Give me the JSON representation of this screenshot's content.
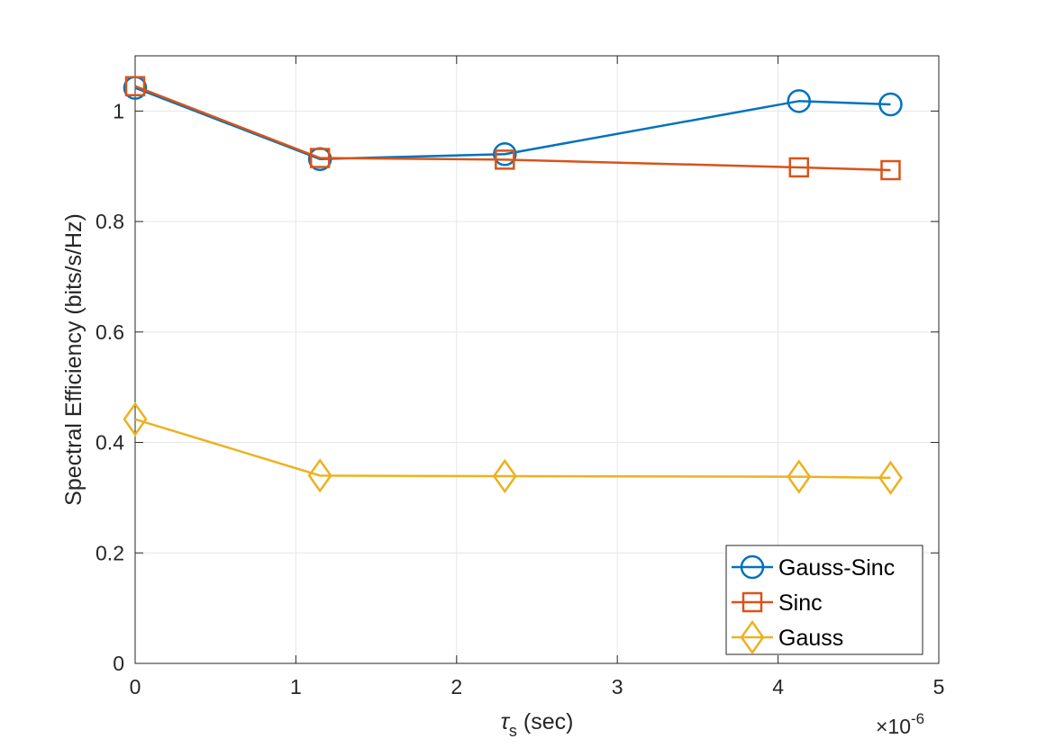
{
  "chart_data": {
    "type": "line",
    "title": "",
    "xlabel": {
      "symbol": "τ",
      "subscript": "s",
      "unit": " (sec)"
    },
    "ylabel": "Spectral Efficiency (bits/s/Hz)",
    "x_exponent": {
      "base": "×10",
      "power": "-6"
    },
    "xlim": [
      0,
      5
    ],
    "ylim": [
      0,
      1.1
    ],
    "xticks": [
      0,
      1,
      2,
      3,
      4,
      5
    ],
    "xtick_labels": [
      "0",
      "1",
      "2",
      "3",
      "4",
      "5"
    ],
    "yticks": [
      0,
      0.2,
      0.4,
      0.6,
      0.8,
      1
    ],
    "ytick_labels": [
      "0",
      "0.2",
      "0.4",
      "0.6",
      "0.8",
      "1"
    ],
    "grid": true,
    "legend_position": "bottom-right",
    "x": [
      0,
      1.15,
      2.3,
      4.13,
      4.7
    ],
    "series": [
      {
        "name": "Gauss-Sinc",
        "marker": "circle",
        "color": "#0072BD",
        "values": [
          1.042,
          0.913,
          0.922,
          1.018,
          1.012
        ]
      },
      {
        "name": "Sinc",
        "marker": "square",
        "color": "#D95319",
        "values": [
          1.045,
          0.915,
          0.912,
          0.898,
          0.893
        ]
      },
      {
        "name": "Gauss",
        "marker": "diamond",
        "color": "#EDB120",
        "values": [
          0.442,
          0.34,
          0.339,
          0.338,
          0.336
        ]
      }
    ]
  }
}
